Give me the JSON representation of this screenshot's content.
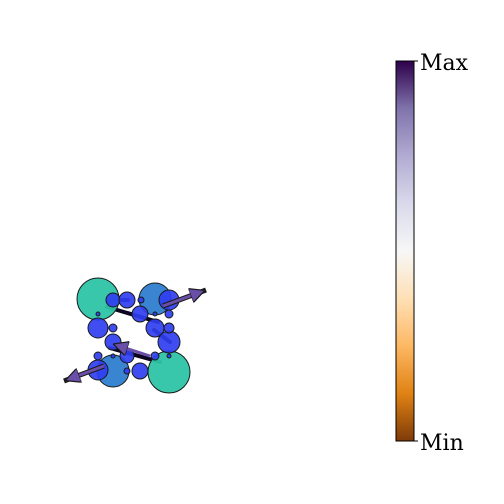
{
  "colorbar": {
    "max_label": "Max",
    "min_label": "Min",
    "colormap": "PuOr",
    "stops": [
      "#7f3b08",
      "#e08214",
      "#fdb863",
      "#fee0b6",
      "#f7f7f7",
      "#d8daeb",
      "#b2abd2",
      "#8073ac",
      "#2d004b"
    ]
  },
  "molecule": {
    "atom_colors": {
      "large": "#2ec4a6",
      "medium": "#2e7ecf",
      "small": "#2f3ef0",
      "outline": "#1a1a1a"
    },
    "bond_color": "#0d0520",
    "arrow_color": "#6a4fa8"
  }
}
